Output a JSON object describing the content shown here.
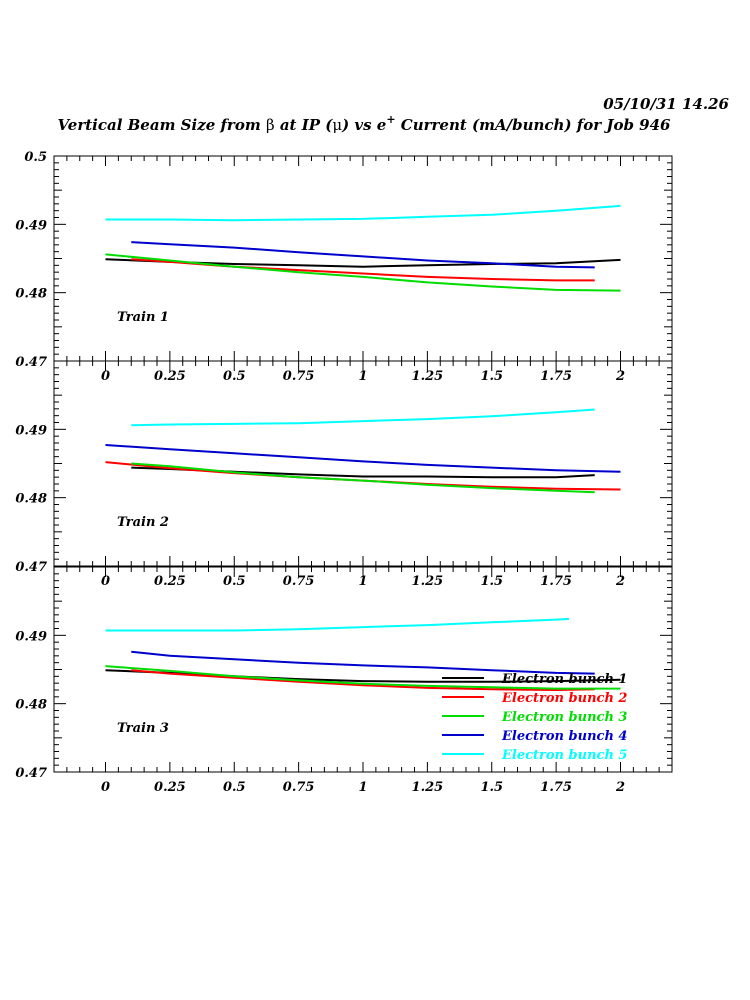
{
  "header": {
    "datetime": "05/10/31   14.26",
    "title_prefix": "Vertical Beam Size from ",
    "title_beta": "β",
    "title_mid": " at IP (",
    "title_mu": "μ",
    "title_mid2": ") vs e",
    "title_sup": "+",
    "title_suffix": " Current (mA/bunch) for Job 946"
  },
  "chart_data": {
    "type": "line",
    "grid": false,
    "x_ticks": [
      0,
      0.25,
      0.5,
      0.75,
      1,
      1.25,
      1.5,
      1.75,
      2
    ],
    "x_tick_labels": [
      "0",
      "0.25",
      "0.5",
      "0.75",
      "1",
      "1.25",
      "1.5",
      "1.75",
      "2"
    ],
    "xlim": [
      -0.2,
      2.2
    ],
    "legend": {
      "position": "bottom-right of bottom panel",
      "entries": [
        "Electron bunch 1",
        "Electron bunch 2",
        "Electron bunch 3",
        "Electron bunch 4",
        "Electron bunch 5"
      ]
    },
    "panels": [
      {
        "label": "Train 1",
        "ylim": [
          0.47,
          0.5
        ],
        "y_ticks": [
          0.48,
          0.49,
          0.5
        ],
        "y_tick_labels": [
          "0.48",
          "0.49",
          "0.5"
        ],
        "bottom_tick_label": "0.47",
        "series": [
          {
            "name": "Electron bunch 1",
            "color": "#000000",
            "x": [
              0,
              0.25,
              0.5,
              0.75,
              1,
              1.25,
              1.5,
              1.75,
              2
            ],
            "y": [
              0.4849,
              0.4845,
              0.4842,
              0.484,
              0.4838,
              0.484,
              0.4842,
              0.4843,
              0.4848
            ]
          },
          {
            "name": "Electron bunch 2",
            "color": "#ff0000",
            "x": [
              0.1,
              0.25,
              0.5,
              0.75,
              1,
              1.25,
              1.5,
              1.75,
              1.9
            ],
            "y": [
              0.4849,
              0.4845,
              0.4838,
              0.4833,
              0.4828,
              0.4823,
              0.482,
              0.4818,
              0.4818
            ]
          },
          {
            "name": "Electron bunch 3",
            "color": "#00dd00",
            "x": [
              0,
              0.25,
              0.5,
              0.75,
              1,
              1.25,
              1.5,
              1.75,
              2
            ],
            "y": [
              0.4856,
              0.4847,
              0.4838,
              0.483,
              0.4823,
              0.4815,
              0.4809,
              0.4804,
              0.4803
            ]
          },
          {
            "name": "Electron bunch 4",
            "color": "#0000cc",
            "x": [
              0.1,
              0.25,
              0.5,
              0.75,
              1,
              1.25,
              1.5,
              1.75,
              1.9
            ],
            "y": [
              0.4874,
              0.4871,
              0.4866,
              0.4859,
              0.4853,
              0.4847,
              0.4843,
              0.4838,
              0.4837
            ]
          },
          {
            "name": "Electron bunch 5",
            "color": "#00ffff",
            "x": [
              0,
              0.25,
              0.5,
              0.75,
              1,
              1.25,
              1.5,
              1.75,
              2
            ],
            "y": [
              0.4907,
              0.4907,
              0.4906,
              0.4907,
              0.4908,
              0.4911,
              0.4914,
              0.492,
              0.4927
            ]
          }
        ]
      },
      {
        "label": "Train 2",
        "ylim": [
          0.47,
          0.5
        ],
        "y_ticks": [
          0.48,
          0.49
        ],
        "y_tick_labels": [
          "0.48",
          "0.49"
        ],
        "bottom_tick_label": "0.47",
        "series": [
          {
            "name": "Electron bunch 1",
            "color": "#000000",
            "x": [
              0.1,
              0.25,
              0.5,
              0.75,
              1,
              1.25,
              1.5,
              1.75,
              1.9
            ],
            "y": [
              0.4844,
              0.4842,
              0.4838,
              0.4834,
              0.4831,
              0.4831,
              0.483,
              0.483,
              0.4833
            ]
          },
          {
            "name": "Electron bunch 2",
            "color": "#ff0000",
            "x": [
              0,
              0.25,
              0.5,
              0.75,
              1,
              1.25,
              1.5,
              1.75,
              2
            ],
            "y": [
              0.4852,
              0.4843,
              0.4836,
              0.483,
              0.4825,
              0.482,
              0.4816,
              0.4813,
              0.4812
            ]
          },
          {
            "name": "Electron bunch 3",
            "color": "#00dd00",
            "x": [
              0.1,
              0.25,
              0.5,
              0.75,
              1,
              1.25,
              1.5,
              1.75,
              1.9
            ],
            "y": [
              0.485,
              0.4846,
              0.4837,
              0.483,
              0.4825,
              0.4819,
              0.4814,
              0.481,
              0.4808
            ]
          },
          {
            "name": "Electron bunch 4",
            "color": "#0000cc",
            "x": [
              0,
              0.25,
              0.5,
              0.75,
              1,
              1.25,
              1.5,
              1.75,
              2
            ],
            "y": [
              0.4877,
              0.4871,
              0.4865,
              0.4859,
              0.4853,
              0.4848,
              0.4844,
              0.484,
              0.4838
            ]
          },
          {
            "name": "Electron bunch 5",
            "color": "#00ffff",
            "x": [
              0.1,
              0.25,
              0.5,
              0.75,
              1,
              1.25,
              1.5,
              1.75,
              1.9
            ],
            "y": [
              0.4906,
              0.4907,
              0.4908,
              0.4909,
              0.4912,
              0.4915,
              0.4919,
              0.4925,
              0.4929
            ]
          }
        ]
      },
      {
        "label": "Train 3",
        "ylim": [
          0.47,
          0.5
        ],
        "y_ticks": [
          0.48,
          0.49
        ],
        "y_tick_labels": [
          "0.48",
          "0.49"
        ],
        "bottom_tick_label": "0.47",
        "series": [
          {
            "name": "Electron bunch 1",
            "color": "#000000",
            "x": [
              0,
              0.25,
              0.5,
              0.75,
              1,
              1.25,
              1.5,
              1.75,
              2
            ],
            "y": [
              0.4849,
              0.4845,
              0.484,
              0.4836,
              0.4833,
              0.4832,
              0.4832,
              0.4833,
              0.4835
            ]
          },
          {
            "name": "Electron bunch 2",
            "color": "#ff0000",
            "x": [
              0.1,
              0.25,
              0.5,
              0.75,
              1,
              1.25,
              1.5,
              1.75,
              1.9
            ],
            "y": [
              0.4849,
              0.4844,
              0.4838,
              0.4832,
              0.4827,
              0.4823,
              0.4821,
              0.482,
              0.4821
            ]
          },
          {
            "name": "Electron bunch 3",
            "color": "#00dd00",
            "x": [
              0,
              0.25,
              0.5,
              0.75,
              1,
              1.25,
              1.5,
              1.75,
              2
            ],
            "y": [
              0.4855,
              0.4848,
              0.484,
              0.4834,
              0.4829,
              0.4826,
              0.4824,
              0.4822,
              0.4822
            ]
          },
          {
            "name": "Electron bunch 4",
            "color": "#0000cc",
            "x": [
              0.1,
              0.25,
              0.5,
              0.75,
              1,
              1.25,
              1.5,
              1.75,
              1.9
            ],
            "y": [
              0.4876,
              0.487,
              0.4865,
              0.486,
              0.4856,
              0.4853,
              0.4849,
              0.4845,
              0.4844
            ]
          },
          {
            "name": "Electron bunch 5",
            "color": "#00ffff",
            "x": [
              0,
              0.25,
              0.5,
              0.75,
              1,
              1.25,
              1.5,
              1.75,
              1.8
            ],
            "y": [
              0.4907,
              0.4907,
              0.4907,
              0.4909,
              0.4912,
              0.4915,
              0.4919,
              0.4923,
              0.4924
            ]
          }
        ]
      }
    ]
  }
}
